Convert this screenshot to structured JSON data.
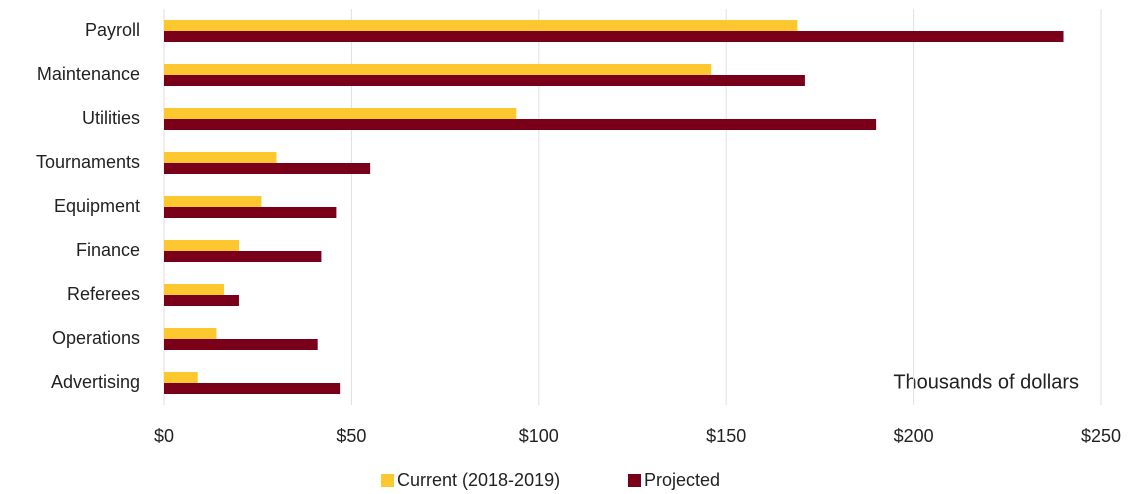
{
  "chart_data": {
    "type": "barh",
    "categories": [
      "Payroll",
      "Maintenance",
      "Utilities",
      "Tournaments",
      "Equipment",
      "Finance",
      "Referees",
      "Operations",
      "Advertising"
    ],
    "series": [
      {
        "name": "Current (2018-2019)",
        "color": "#fdc82f",
        "values": [
          169,
          146,
          94,
          30,
          26,
          20,
          16,
          14,
          9
        ]
      },
      {
        "name": "Projected",
        "color": "#7a0019",
        "values": [
          240,
          171,
          190,
          55,
          46,
          42,
          20,
          41,
          47
        ]
      }
    ],
    "xlim": [
      0,
      250
    ],
    "xticks": [
      {
        "value": 0,
        "label": "$0"
      },
      {
        "value": 50,
        "label": "$50"
      },
      {
        "value": 100,
        "label": "$100"
      },
      {
        "value": 150,
        "label": "$150"
      },
      {
        "value": 200,
        "label": "$200"
      },
      {
        "value": 250,
        "label": "$250"
      }
    ],
    "annotation": "Thousands of dollars",
    "grid": true,
    "legend": "bottom"
  }
}
